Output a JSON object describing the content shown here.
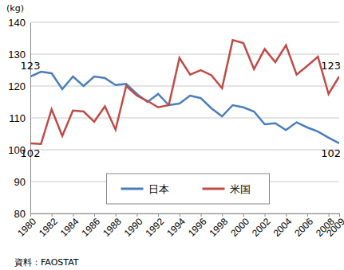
{
  "chart_data": {
    "type": "line",
    "y_label": "(kg)",
    "caption": "資料：FAOSTAT",
    "x": [
      1980,
      1981,
      1982,
      1983,
      1984,
      1985,
      1986,
      1987,
      1988,
      1989,
      1990,
      1991,
      1992,
      1993,
      1994,
      1995,
      1996,
      1997,
      1998,
      1999,
      2000,
      2001,
      2002,
      2003,
      2004,
      2005,
      2006,
      2007,
      2008,
      2009
    ],
    "series": [
      {
        "name": "日本",
        "color": "#4a7ebb",
        "values": [
          123,
          124.5,
          124,
          119,
          123,
          120,
          123,
          122.5,
          120.3,
          120.7,
          117.5,
          115,
          117.5,
          114,
          114.5,
          117,
          116.2,
          113,
          110.5,
          114,
          113.3,
          112,
          108,
          108.3,
          106.2,
          108.6,
          107,
          105.7,
          103.8,
          102
        ]
      },
      {
        "name": "米国",
        "color": "#be4b48",
        "values": [
          102,
          101.8,
          112.7,
          104.3,
          112.3,
          112,
          108.8,
          113.6,
          106.3,
          120,
          117,
          115.3,
          113.3,
          114,
          128.8,
          123.6,
          125,
          123.4,
          119.3,
          134.4,
          133.5,
          125.3,
          131.6,
          127.5,
          132.8,
          123.6,
          126.3,
          129.2,
          117.5,
          123
        ]
      }
    ],
    "annotations": [
      {
        "text": "123",
        "x": 1980,
        "y": 123
      },
      {
        "text": "102",
        "x": 1980,
        "y": 102
      },
      {
        "text": "123",
        "x": 2009,
        "y": 123
      },
      {
        "text": "102",
        "x": 2009,
        "y": 102
      }
    ],
    "xlim": [
      1980,
      2009
    ],
    "xticks": [
      1980,
      1982,
      1984,
      1986,
      1988,
      1990,
      1992,
      1994,
      1996,
      1998,
      2000,
      2002,
      2004,
      2006,
      2008,
      2009
    ],
    "ylim": [
      80,
      140
    ],
    "yticks": [
      80,
      90,
      100,
      110,
      120,
      130,
      140
    ],
    "grid": true,
    "legend": "bottom"
  }
}
